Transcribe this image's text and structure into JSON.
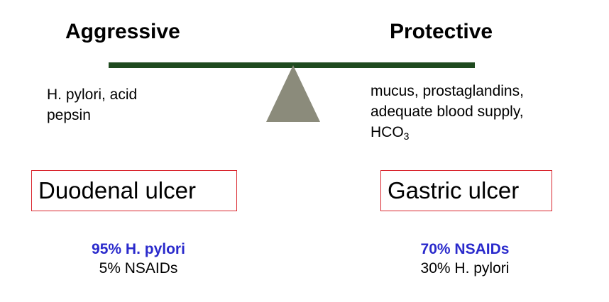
{
  "headings": {
    "aggressive": "Aggressive",
    "protective": "Protective"
  },
  "aggressive_factors": {
    "line1": "H. pylori, acid",
    "line2": "pepsin"
  },
  "protective_factors": {
    "line1": "mucus, prostaglandins,",
    "line2": "adequate blood supply,",
    "line3_main": "HCO",
    "line3_sub": "3"
  },
  "ulcers": {
    "duodenal": {
      "label": "Duodenal ulcer",
      "primary_cause": "95% H. pylori",
      "secondary_cause": "5% NSAIDs"
    },
    "gastric": {
      "label": "Gastric ulcer",
      "primary_cause": "70% NSAIDs",
      "secondary_cause": "30% H. pylori"
    }
  },
  "colors": {
    "beam": "#1f4a1f",
    "fulcrum": "#8b8b7b",
    "box_border": "#d9262e",
    "primary_stat": "#2a2acc",
    "text": "#000000"
  }
}
